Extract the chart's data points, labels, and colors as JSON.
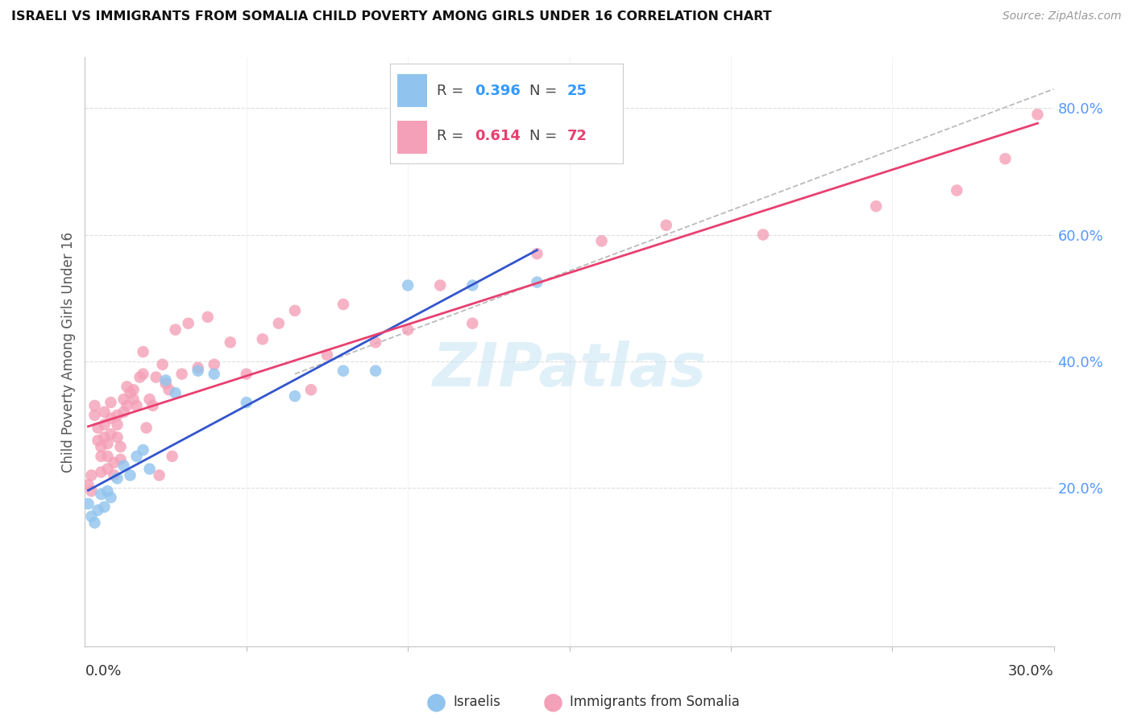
{
  "title": "ISRAELI VS IMMIGRANTS FROM SOMALIA CHILD POVERTY AMONG GIRLS UNDER 16 CORRELATION CHART",
  "source": "Source: ZipAtlas.com",
  "ylabel": "Child Poverty Among Girls Under 16",
  "israeli_R": 0.396,
  "israeli_N": 25,
  "somalia_R": 0.614,
  "somalia_N": 72,
  "israeli_color": "#90C4EE",
  "somalia_color": "#F4A0B8",
  "israeli_line_color": "#3355CC",
  "somalia_line_color": "#E84070",
  "diagonal_color": "#BBBBBB",
  "xlim": [
    0.0,
    0.3
  ],
  "ylim": [
    -0.05,
    0.88
  ],
  "israeli_x": [
    0.001,
    0.002,
    0.003,
    0.004,
    0.005,
    0.006,
    0.007,
    0.008,
    0.01,
    0.012,
    0.014,
    0.016,
    0.018,
    0.02,
    0.025,
    0.028,
    0.035,
    0.04,
    0.05,
    0.065,
    0.08,
    0.09,
    0.1,
    0.12,
    0.14
  ],
  "israeli_y": [
    0.175,
    0.155,
    0.145,
    0.165,
    0.19,
    0.17,
    0.195,
    0.185,
    0.215,
    0.235,
    0.22,
    0.25,
    0.26,
    0.23,
    0.37,
    0.35,
    0.385,
    0.38,
    0.335,
    0.345,
    0.385,
    0.385,
    0.52,
    0.52,
    0.525
  ],
  "somalia_x": [
    0.001,
    0.002,
    0.002,
    0.003,
    0.003,
    0.004,
    0.004,
    0.005,
    0.005,
    0.005,
    0.006,
    0.006,
    0.006,
    0.007,
    0.007,
    0.007,
    0.008,
    0.008,
    0.008,
    0.009,
    0.009,
    0.01,
    0.01,
    0.01,
    0.011,
    0.011,
    0.012,
    0.012,
    0.013,
    0.013,
    0.014,
    0.015,
    0.015,
    0.016,
    0.017,
    0.018,
    0.018,
    0.019,
    0.02,
    0.021,
    0.022,
    0.023,
    0.024,
    0.025,
    0.026,
    0.027,
    0.028,
    0.03,
    0.032,
    0.035,
    0.038,
    0.04,
    0.045,
    0.05,
    0.055,
    0.06,
    0.065,
    0.07,
    0.075,
    0.08,
    0.09,
    0.1,
    0.11,
    0.12,
    0.14,
    0.16,
    0.18,
    0.21,
    0.245,
    0.27,
    0.285,
    0.295
  ],
  "somalia_y": [
    0.205,
    0.195,
    0.22,
    0.33,
    0.315,
    0.295,
    0.275,
    0.265,
    0.25,
    0.225,
    0.32,
    0.3,
    0.28,
    0.27,
    0.25,
    0.23,
    0.335,
    0.31,
    0.285,
    0.24,
    0.22,
    0.315,
    0.3,
    0.28,
    0.265,
    0.245,
    0.34,
    0.32,
    0.36,
    0.33,
    0.35,
    0.355,
    0.34,
    0.33,
    0.375,
    0.415,
    0.38,
    0.295,
    0.34,
    0.33,
    0.375,
    0.22,
    0.395,
    0.365,
    0.355,
    0.25,
    0.45,
    0.38,
    0.46,
    0.39,
    0.47,
    0.395,
    0.43,
    0.38,
    0.435,
    0.46,
    0.48,
    0.355,
    0.41,
    0.49,
    0.43,
    0.45,
    0.52,
    0.46,
    0.57,
    0.59,
    0.615,
    0.6,
    0.645,
    0.67,
    0.72,
    0.79
  ],
  "watermark_text": "ZIPatlas",
  "background_color": "#FFFFFF",
  "grid_color": "#DDDDDD"
}
